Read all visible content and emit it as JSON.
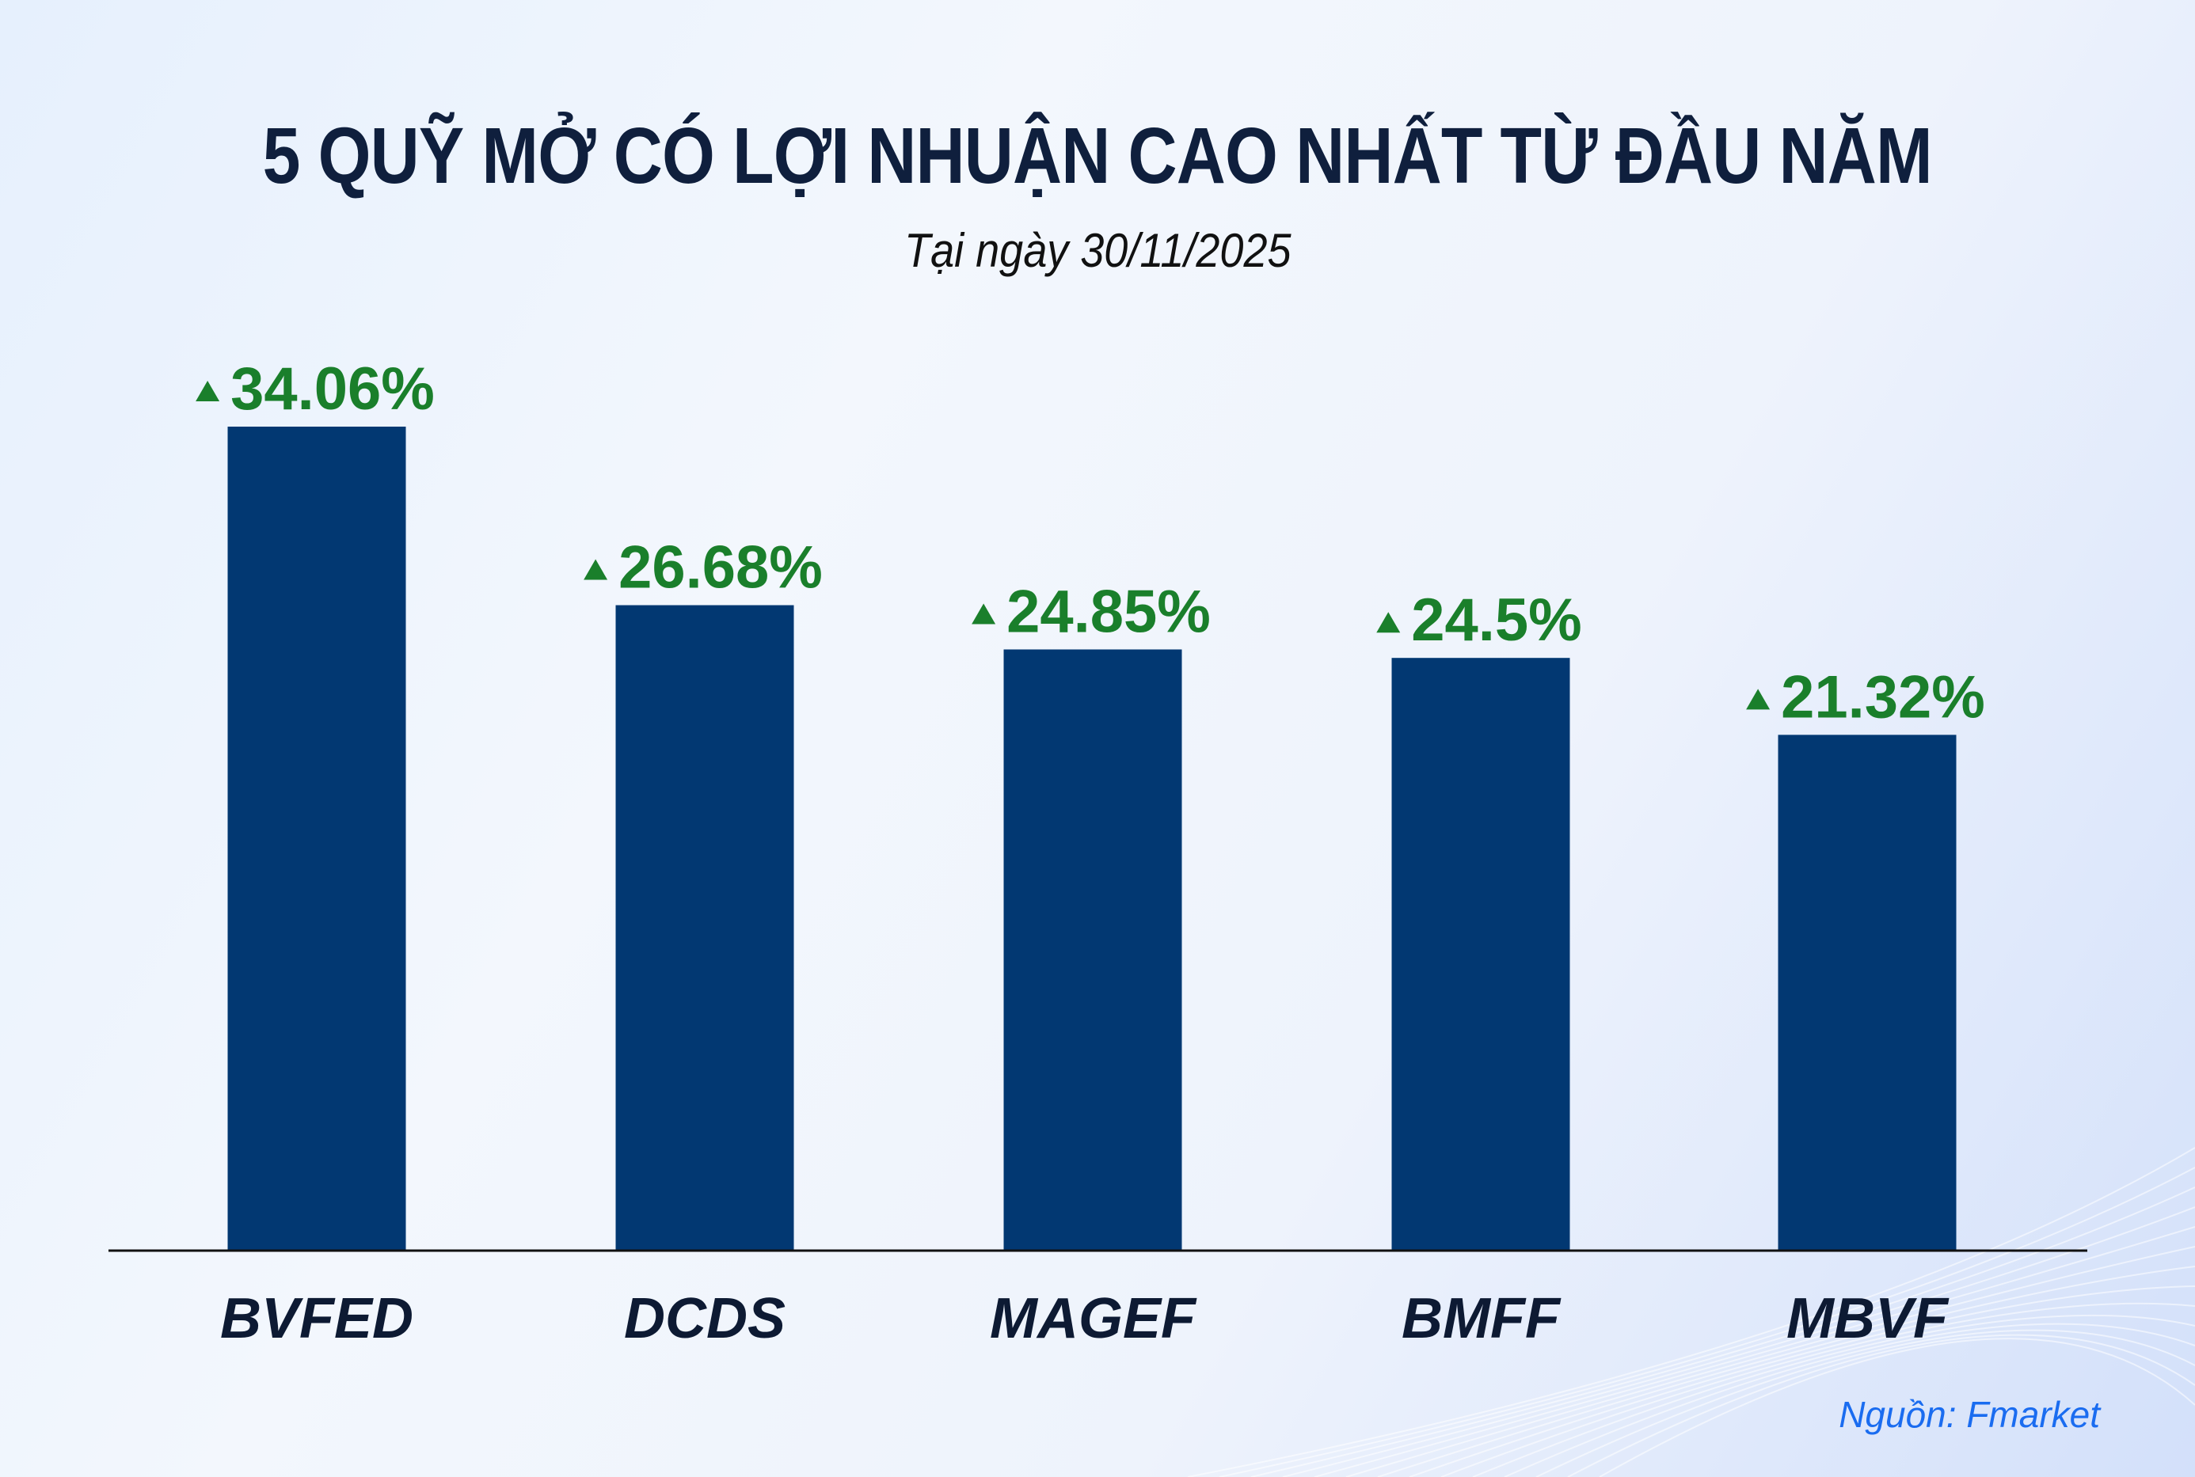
{
  "title": "5 QUỸ MỞ CÓ LỢI NHUẬN CAO NHẤT TỪ ĐẦU NĂM",
  "subtitle": "Tại ngày 30/11/2025",
  "source": "Nguồn: Fmarket",
  "colors": {
    "bar": "#023872",
    "value_label": "#1a7f2b",
    "title": "#0f1f3d",
    "source": "#1a6cf0"
  },
  "chart_data": {
    "type": "bar",
    "title": "5 QUỸ MỞ CÓ LỢI NHUẬN CAO NHẤT TỪ ĐẦU NĂM",
    "subtitle": "Tại ngày 30/11/2025",
    "categories": [
      "BVFED",
      "DCDS",
      "MAGEF",
      "BMFF",
      "MBVF"
    ],
    "values": [
      34.06,
      26.68,
      24.85,
      24.5,
      21.32
    ],
    "data_labels": [
      "34.06%",
      "26.68%",
      "24.85%",
      "24.5%",
      "21.32%"
    ],
    "label_icon": "triangle-up-icon",
    "xlabel": "",
    "ylabel": "",
    "ylim": [
      0,
      34.06
    ],
    "grid": false,
    "y_axis_visible": false
  }
}
